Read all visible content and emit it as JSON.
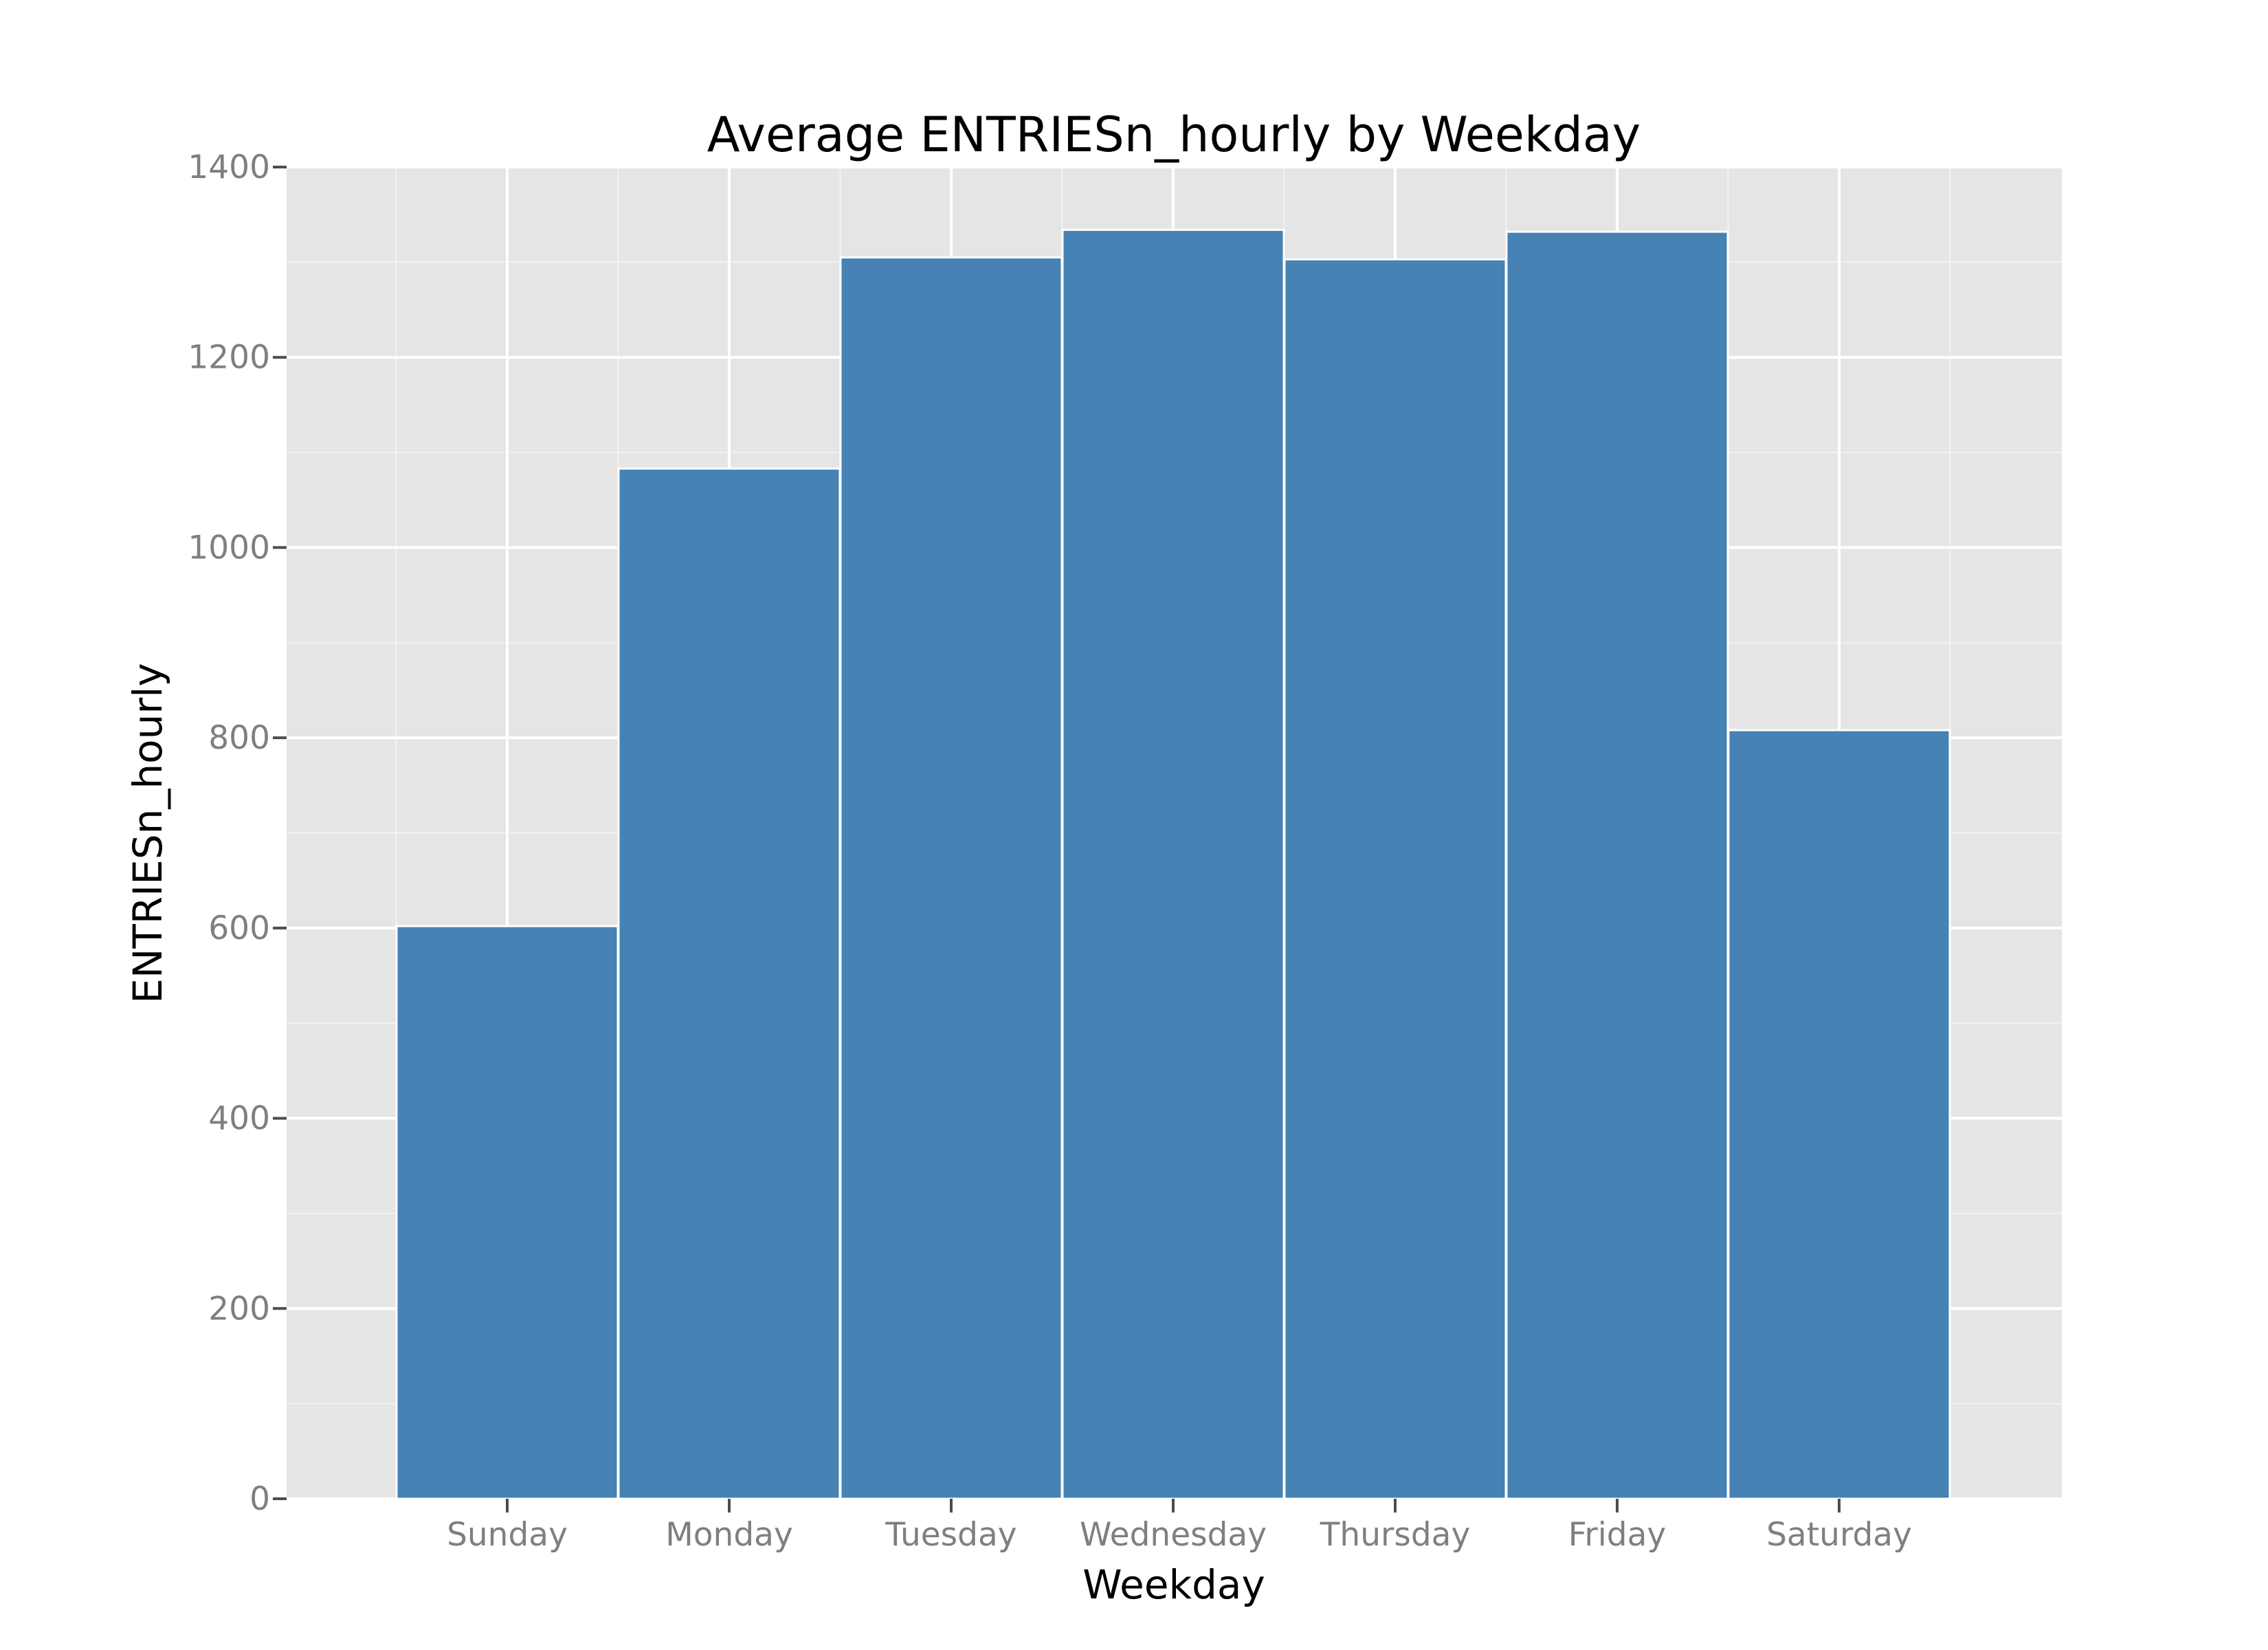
{
  "colors": {
    "panel_background": "#e5e5e5",
    "grid_major": "#ffffff",
    "grid_minor": "#f2f2f2",
    "bar_fill": "#4682b4",
    "bar_edge": "#ffffff",
    "tick_mark": "#4d4d4d",
    "tick_text": "#7f7f7f",
    "text": "#000000"
  },
  "chart_data": {
    "type": "bar",
    "title": "Average ENTRIESn_hourly by Weekday",
    "xlabel": "Weekday",
    "ylabel": "ENTRIESn_hourly",
    "categories": [
      "Sunday",
      "Monday",
      "Tuesday",
      "Wednesday",
      "Thursday",
      "Friday",
      "Saturday"
    ],
    "values": [
      602,
      1083,
      1305,
      1334,
      1303,
      1332,
      808
    ],
    "ylim": [
      0,
      1400
    ],
    "yticks": [
      0,
      200,
      400,
      600,
      800,
      1000,
      1200,
      1400
    ],
    "ytick_labels": [
      "0",
      "200",
      "400",
      "600",
      "800",
      "1000",
      "1200",
      "1400"
    ],
    "grid": true,
    "legend": "none"
  }
}
